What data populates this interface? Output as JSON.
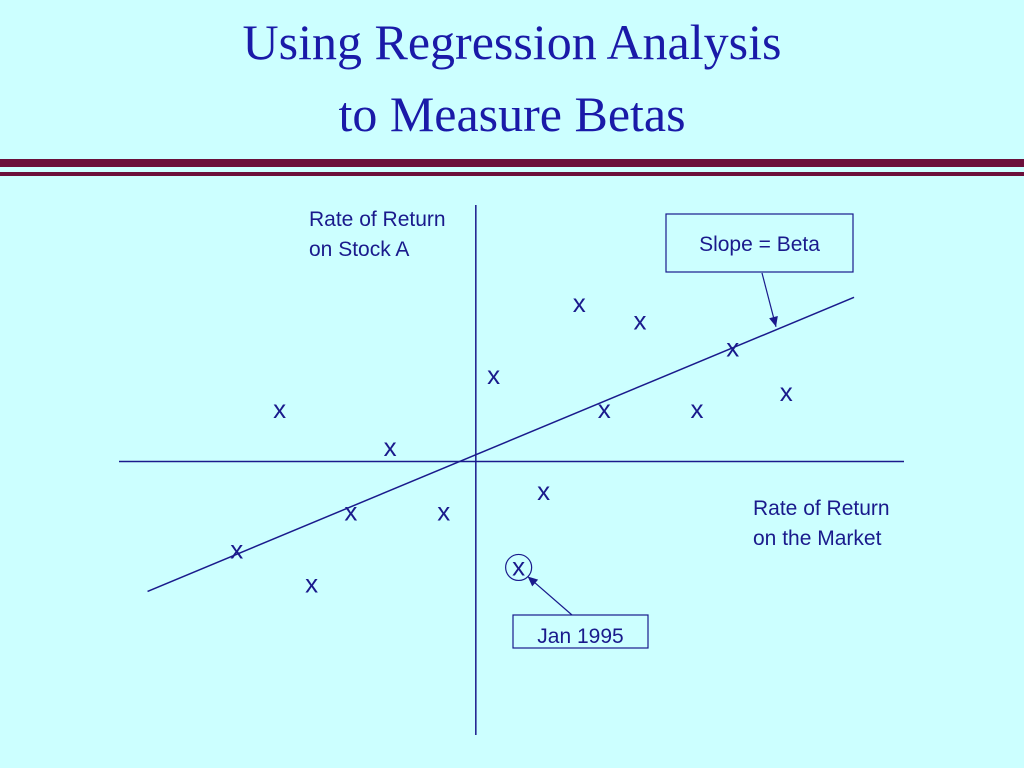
{
  "slide": {
    "title_line1": "Using Regression Analysis",
    "title_line2": "to Measure Betas"
  },
  "colors": {
    "background": "#ccffff",
    "title": "#1a1aa8",
    "rule": "#6b0f3a",
    "chart_ink": "#1a1a8c"
  },
  "chart_data": {
    "type": "scatter",
    "title": "",
    "ylabel_lines": [
      "Rate of Return",
      "on Stock A"
    ],
    "xlabel_lines": [
      "Rate of Return",
      "on the Market"
    ],
    "marker": "x",
    "grid": false,
    "xlim": [
      -10,
      12
    ],
    "ylim": [
      -8,
      7.5
    ],
    "points": [
      {
        "x": 2.9,
        "y": 4.6
      },
      {
        "x": 4.6,
        "y": 4.1
      },
      {
        "x": 7.2,
        "y": 3.3
      },
      {
        "x": 0.5,
        "y": 2.5
      },
      {
        "x": 8.7,
        "y": 2.0
      },
      {
        "x": -5.5,
        "y": 1.5
      },
      {
        "x": 3.6,
        "y": 1.5
      },
      {
        "x": 6.2,
        "y": 1.5
      },
      {
        "x": -2.4,
        "y": 0.4
      },
      {
        "x": 1.9,
        "y": -0.9
      },
      {
        "x": -3.5,
        "y": -1.5
      },
      {
        "x": -0.9,
        "y": -1.5
      },
      {
        "x": -6.7,
        "y": -2.6
      },
      {
        "x": 1.2,
        "y": -3.1
      },
      {
        "x": -4.6,
        "y": -3.6
      }
    ],
    "regression_line": {
      "x_start": -9.2,
      "y_start": -3.8,
      "x_end": 10.6,
      "y_end": 4.8
    },
    "annotations": [
      {
        "text": "Slope = Beta",
        "target": "regression_line"
      },
      {
        "text": "Jan 1995",
        "target_point_index": 13
      }
    ]
  }
}
